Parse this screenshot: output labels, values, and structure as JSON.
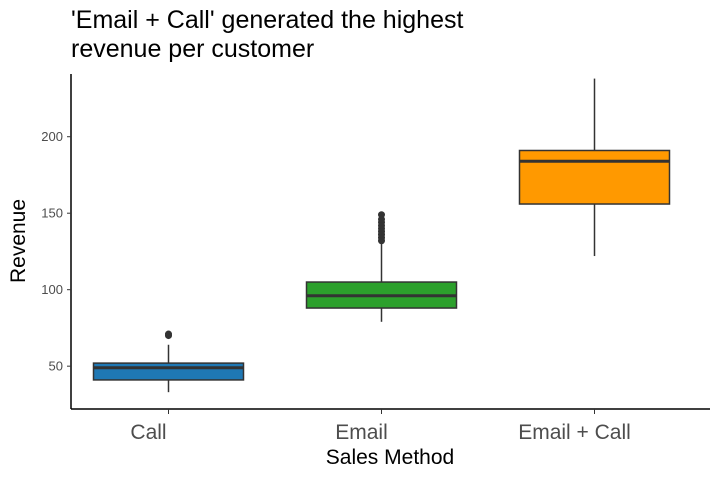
{
  "chart_data": {
    "type": "box",
    "title": "'Email + Call' generated the highest revenue per customer",
    "title_lines": [
      "'Email + Call' generated the highest",
      "revenue per customer"
    ],
    "xlabel": "Sales Method",
    "ylabel": "Revenue",
    "categories": [
      "Call",
      "Email",
      "Email + Call"
    ],
    "ylim": [
      22,
      241
    ],
    "yticks": [
      50,
      100,
      150,
      200
    ],
    "grid": false,
    "legend": "none",
    "boxes": [
      {
        "category": "Call",
        "whisker_low": 33,
        "q1": 41,
        "median": 49,
        "q3": 52,
        "whisker_high": 64,
        "outliers": [
          70,
          71
        ],
        "color": "#1f78b4"
      },
      {
        "category": "Email",
        "whisker_low": 79,
        "q1": 88,
        "median": 96,
        "q3": 105,
        "whisker_high": 130,
        "outliers": [
          132,
          134,
          136,
          138,
          140,
          142,
          144,
          146,
          149
        ],
        "color": "#2ca02c"
      },
      {
        "category": "Email + Call",
        "whisker_low": 122,
        "q1": 156,
        "median": 184,
        "q3": 191,
        "whisker_high": 238,
        "outliers": [],
        "color": "#ff9900"
      }
    ]
  }
}
